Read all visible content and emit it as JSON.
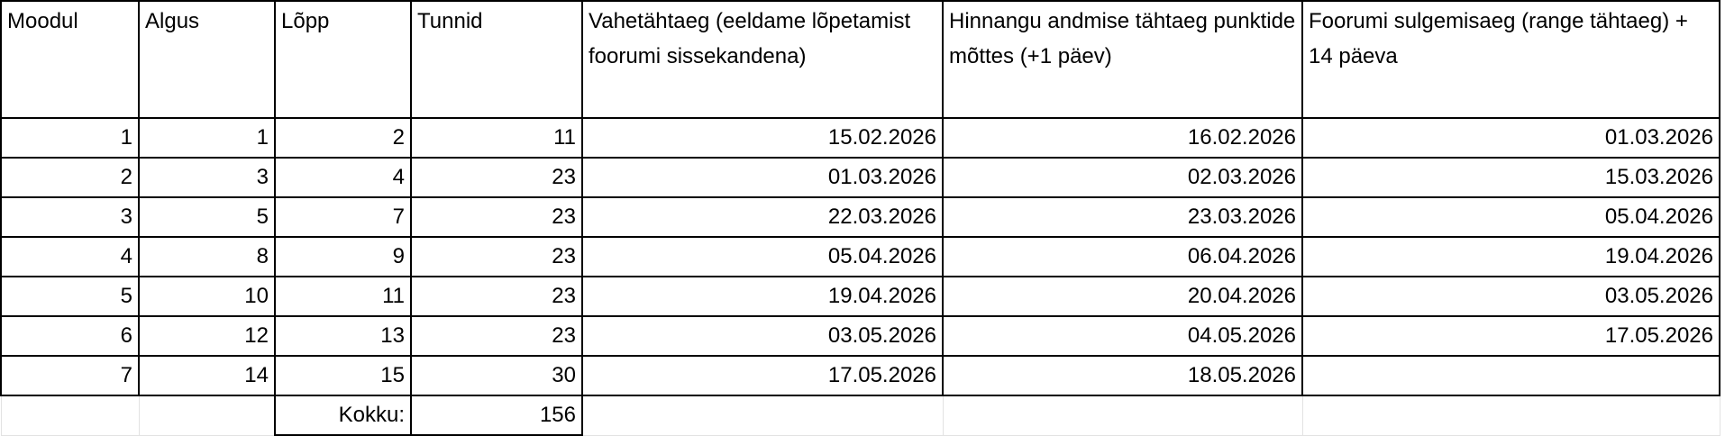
{
  "headers": [
    "Moodul",
    "Algus",
    "Lõpp",
    "Tunnid",
    "Vahetähtaeg (eeldame lõpetamist foorumi sissekandena)",
    "Hinnangu andmise tähtaeg punktide mõttes (+1 päev)",
    "Foorumi sulgemisaeg (range tähtaeg) + 14 päeva"
  ],
  "rows": [
    [
      "1",
      "1",
      "2",
      "11",
      "15.02.2026",
      "16.02.2026",
      "01.03.2026"
    ],
    [
      "2",
      "3",
      "4",
      "23",
      "01.03.2026",
      "02.03.2026",
      "15.03.2026"
    ],
    [
      "3",
      "5",
      "7",
      "23",
      "22.03.2026",
      "23.03.2026",
      "05.04.2026"
    ],
    [
      "4",
      "8",
      "9",
      "23",
      "05.04.2026",
      "06.04.2026",
      "19.04.2026"
    ],
    [
      "5",
      "10",
      "11",
      "23",
      "19.04.2026",
      "20.04.2026",
      "03.05.2026"
    ],
    [
      "6",
      "12",
      "13",
      "23",
      "03.05.2026",
      "04.05.2026",
      "17.05.2026"
    ],
    [
      "7",
      "14",
      "15",
      "30",
      "17.05.2026",
      "18.05.2026",
      ""
    ]
  ],
  "total": {
    "label": "Kokku:",
    "value": "156"
  }
}
